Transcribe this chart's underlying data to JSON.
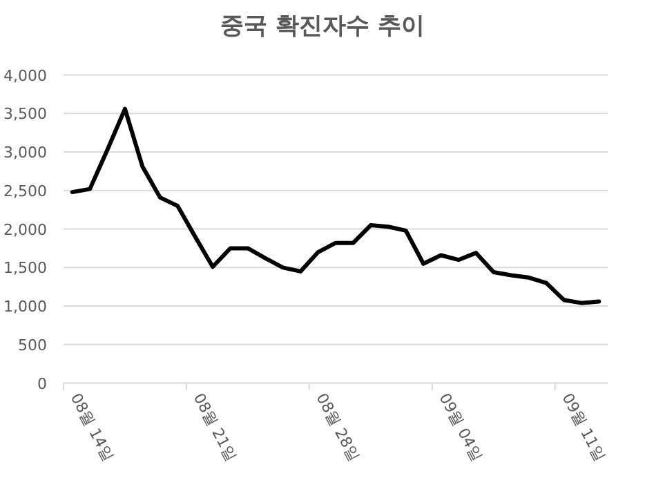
{
  "chart_data": {
    "type": "line",
    "title": "중국 확진자수 추이",
    "categories": [
      "08월 14일",
      null,
      null,
      null,
      null,
      null,
      null,
      "08월 21일",
      null,
      null,
      null,
      null,
      null,
      null,
      "08월 28일",
      null,
      null,
      null,
      null,
      null,
      null,
      "09월 04일",
      null,
      null,
      null,
      null,
      null,
      null,
      "09월 11일",
      null,
      null
    ],
    "series": [
      {
        "color": "#000000",
        "values": [
          2480,
          2520,
          3030,
          3560,
          2810,
          2410,
          2300,
          1900,
          1510,
          1750,
          1750,
          1620,
          1500,
          1450,
          1700,
          1820,
          1820,
          2050,
          2030,
          1980,
          1550,
          1660,
          1600,
          1690,
          1440,
          1400,
          1370,
          1300,
          1080,
          1040,
          1060
        ]
      }
    ],
    "ylim": [
      0,
      4000
    ],
    "yticks": [
      {
        "value": 0,
        "label": "0"
      },
      {
        "value": 500,
        "label": "500"
      },
      {
        "value": 1000,
        "label": "1,000"
      },
      {
        "value": 1500,
        "label": "1,500"
      },
      {
        "value": 2000,
        "label": "2,000"
      },
      {
        "value": 2500,
        "label": "2,500"
      },
      {
        "value": 3000,
        "label": "3,000"
      },
      {
        "value": 3500,
        "label": "3,500"
      },
      {
        "value": 4000,
        "label": "4,000"
      }
    ],
    "grid": "y"
  }
}
